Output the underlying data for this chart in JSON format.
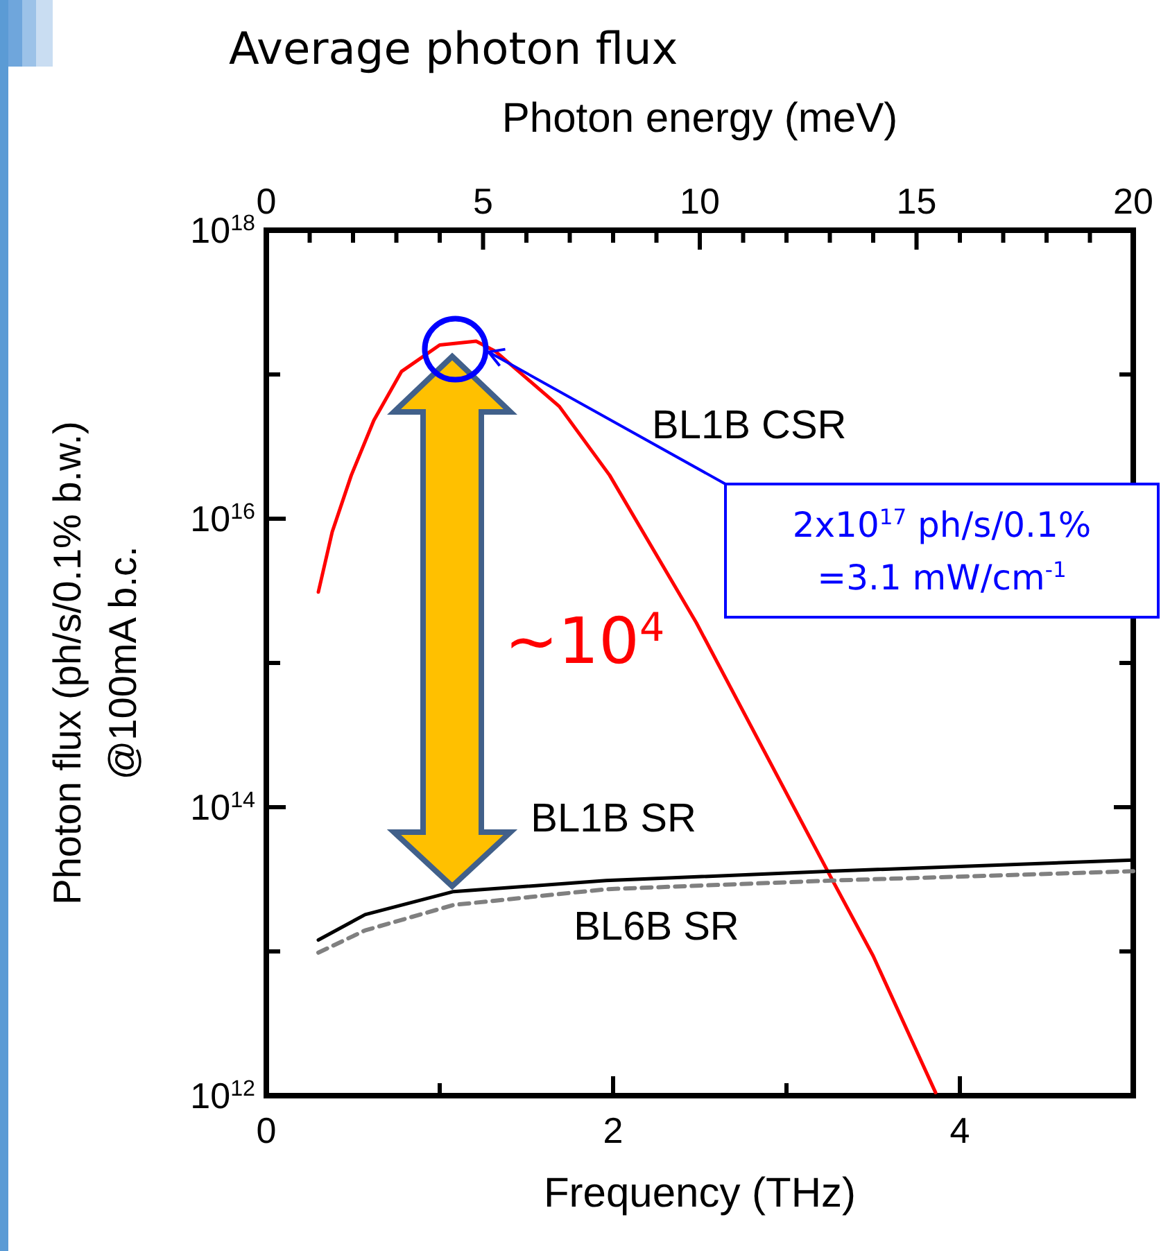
{
  "chart_data": {
    "type": "line",
    "title": "Average photon flux",
    "xlabel": "Frequency (THz)",
    "x2label": "Photon energy (meV)",
    "ylabel": "Photon flux (ph/s/0.1% b.w.)\n@100mA b.c.",
    "xlim": [
      0,
      5
    ],
    "xticks": [
      0,
      {
        "value": 1,
        "label": null
      },
      2,
      {
        "value": 3,
        "label": null
      },
      4,
      {
        "value": 5,
        "label": null
      }
    ],
    "x2lim": [
      0,
      20
    ],
    "x2ticks": [
      0,
      {
        "value": 1,
        "label": null
      },
      {
        "value": 2,
        "label": null
      },
      {
        "value": 3,
        "label": null
      },
      {
        "value": 4,
        "label": null
      },
      5,
      {
        "value": 6,
        "label": null
      },
      {
        "value": 7,
        "label": null
      },
      {
        "value": 8,
        "label": null
      },
      {
        "value": 9,
        "label": null
      },
      10,
      {
        "value": 11,
        "label": null
      },
      {
        "value": 12,
        "label": null
      },
      {
        "value": 13,
        "label": null
      },
      {
        "value": 14,
        "label": null
      },
      15,
      {
        "value": 16,
        "label": null
      },
      {
        "value": 17,
        "label": null
      },
      {
        "value": 18,
        "label": null
      },
      {
        "value": 19,
        "label": null
      },
      20
    ],
    "ylim": [
      1000000000000.0,
      1e+18
    ],
    "yticks": [
      {
        "value": 1000000000000.0,
        "label": "10$^{12}$"
      },
      {
        "value": 10000000000000.0,
        "label": null
      },
      {
        "value": 100000000000000.0,
        "label": "10$^{14}$"
      },
      {
        "value": 1000000000000000.0,
        "label": null
      },
      {
        "value": 1e+16,
        "label": "10$^{16}$"
      },
      {
        "value": 1e+17,
        "label": null
      },
      {
        "value": 1e+18,
        "label": "10$^{18}$"
      }
    ],
    "log": "y",
    "series": [
      {
        "name": "BL1B CSR",
        "color": "#ff0000",
        "x": [
          0.3,
          0.38,
          0.49,
          0.62,
          0.78,
          1.0,
          1.21,
          1.32,
          1.69,
          1.98,
          2.48,
          3.26,
          3.5,
          3.86
        ],
        "values": [
          3100000000000000.0,
          8100000000000000.0,
          2e+16,
          4.8e+16,
          1.05e+17,
          1.6e+17,
          1.7e+17,
          1.45e+17,
          6e+16,
          2e+16,
          1900000000000000.0,
          32000000000000.0,
          9300000000000.0,
          1050000000000.0
        ]
      },
      {
        "name": "BL1B SR",
        "color": "#000000",
        "x": [
          0.3,
          0.57,
          1.08,
          1.96,
          3.26,
          5
        ],
        "values": [
          12000000000000.0,
          18000000000000.0,
          26000000000000.0,
          31000000000000.0,
          36000000000000.0,
          43000000000000.0
        ]
      },
      {
        "name": "BL6B SR",
        "color": "#808080",
        "line_style": "dashed",
        "x": [
          0.3,
          0.57,
          1.08,
          1.96,
          3.26,
          5
        ],
        "values": [
          9800000000000.0,
          14000000000000.0,
          21000000000000.0,
          27000000000000.0,
          31000000000000.0,
          36000000000000.0
        ]
      }
    ],
    "annotations": [
      "~10$^{4}$",
      "2x10$^{17}$ ph/s/0.1%\n=3.1 mW/cm$^{-1}$"
    ]
  }
}
